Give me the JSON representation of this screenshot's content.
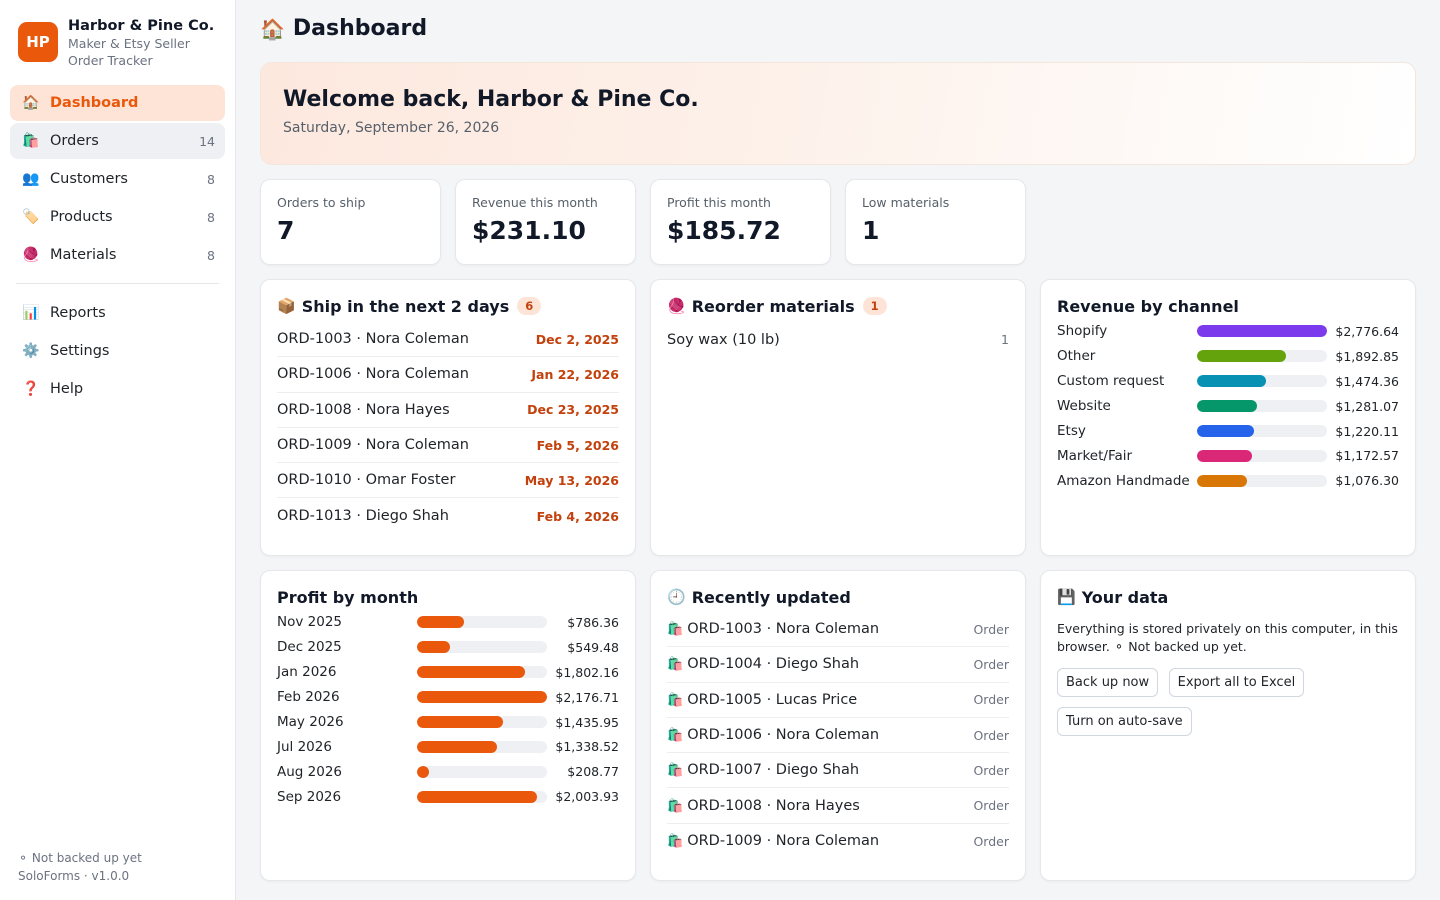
{
  "brand": {
    "logo": "HP",
    "name": "Harbor & Pine Co.",
    "line1": "Maker & Etsy Seller",
    "line2": "Order Tracker",
    "accent": "#ea580c"
  },
  "nav": [
    {
      "label": "Dashboard",
      "icon": "🏠",
      "count": "",
      "name": "dashboard"
    },
    {
      "label": "Orders",
      "icon": "🛍️",
      "count": "14",
      "name": "orders"
    },
    {
      "label": "Customers",
      "icon": "👥",
      "count": "8",
      "name": "customers"
    },
    {
      "label": "Products",
      "icon": "🏷️",
      "count": "8",
      "name": "products"
    },
    {
      "label": "Materials",
      "icon": "🧶",
      "count": "8",
      "name": "materials"
    }
  ],
  "nav2": [
    {
      "label": "Reports",
      "icon": "📊",
      "name": "reports"
    },
    {
      "label": "Settings",
      "icon": "⚙️",
      "name": "settings"
    },
    {
      "label": "Help",
      "icon": "❓",
      "name": "help"
    }
  ],
  "footer": {
    "status": "⚬ Not backed up yet",
    "version": "SoloForms · v1.0.0"
  },
  "page": {
    "title": "Dashboard",
    "icon": "🏠"
  },
  "welcome": {
    "heading": "Welcome back, Harbor & Pine Co.",
    "date": "Saturday, September 26, 2026"
  },
  "stats": [
    {
      "label": "Orders to ship",
      "value": "7"
    },
    {
      "label": "Revenue this month",
      "value": "$231.10"
    },
    {
      "label": "Profit this month",
      "value": "$185.72"
    },
    {
      "label": "Low materials",
      "value": "1"
    }
  ],
  "ship": {
    "title": "Ship in the next 2 days",
    "icon": "📦",
    "badge": "6",
    "rows": [
      {
        "label": "ORD-1003 · Nora Coleman",
        "date": "Dec 2, 2025"
      },
      {
        "label": "ORD-1006 · Nora Coleman",
        "date": "Jan 22, 2026"
      },
      {
        "label": "ORD-1008 · Nora Hayes",
        "date": "Dec 23, 2025"
      },
      {
        "label": "ORD-1009 · Nora Coleman",
        "date": "Feb 5, 2026"
      },
      {
        "label": "ORD-1010 · Omar Foster",
        "date": "May 13, 2026"
      },
      {
        "label": "ORD-1013 · Diego Shah",
        "date": "Feb 4, 2026"
      }
    ]
  },
  "reorder": {
    "title": "Reorder materials",
    "icon": "🧶",
    "badge": "1",
    "rows": [
      {
        "label": "Soy wax (10 lb)",
        "qty": "1"
      }
    ]
  },
  "channel": {
    "title": "Revenue by channel",
    "rows": [
      {
        "label": "Shopify",
        "value": "$2,776.64",
        "amount": 2776.64,
        "color": "#7c3aed"
      },
      {
        "label": "Other",
        "value": "$1,892.85",
        "amount": 1892.85,
        "color": "#65a30d"
      },
      {
        "label": "Custom request",
        "value": "$1,474.36",
        "amount": 1474.36,
        "color": "#0891b2"
      },
      {
        "label": "Website",
        "value": "$1,281.07",
        "amount": 1281.07,
        "color": "#059669"
      },
      {
        "label": "Etsy",
        "value": "$1,220.11",
        "amount": 1220.11,
        "color": "#2563eb"
      },
      {
        "label": "Market/Fair",
        "value": "$1,172.57",
        "amount": 1172.57,
        "color": "#db2777"
      },
      {
        "label": "Amazon Handmade",
        "value": "$1,076.30",
        "amount": 1076.3,
        "color": "#d97706"
      }
    ]
  },
  "profit": {
    "title": "Profit by month",
    "color": "#ea580c",
    "rows": [
      {
        "label": "Nov 2025",
        "value": "$786.36",
        "amount": 786.36
      },
      {
        "label": "Dec 2025",
        "value": "$549.48",
        "amount": 549.48
      },
      {
        "label": "Jan 2026",
        "value": "$1,802.16",
        "amount": 1802.16
      },
      {
        "label": "Feb 2026",
        "value": "$2,176.71",
        "amount": 2176.71
      },
      {
        "label": "May 2026",
        "value": "$1,435.95",
        "amount": 1435.95
      },
      {
        "label": "Jul 2026",
        "value": "$1,338.52",
        "amount": 1338.52
      },
      {
        "label": "Aug 2026",
        "value": "$208.77",
        "amount": 208.77
      },
      {
        "label": "Sep 2026",
        "value": "$2,003.93",
        "amount": 2003.93
      }
    ]
  },
  "recent": {
    "title": "Recently updated",
    "icon": "🕘",
    "rowIcon": "🛍️",
    "rows": [
      {
        "label": "ORD-1003 · Nora Coleman",
        "type": "Order"
      },
      {
        "label": "ORD-1004 · Diego Shah",
        "type": "Order"
      },
      {
        "label": "ORD-1005 · Lucas Price",
        "type": "Order"
      },
      {
        "label": "ORD-1006 · Nora Coleman",
        "type": "Order"
      },
      {
        "label": "ORD-1007 · Diego Shah",
        "type": "Order"
      },
      {
        "label": "ORD-1008 · Nora Hayes",
        "type": "Order"
      },
      {
        "label": "ORD-1009 · Nora Coleman",
        "type": "Order"
      }
    ]
  },
  "yourdata": {
    "title": "Your data",
    "icon": "💾",
    "text": "Everything is stored privately on this computer, in this browser. ⚬ Not backed up yet.",
    "buttons": [
      "Back up now",
      "Export all to Excel",
      "Turn on auto-save"
    ]
  }
}
